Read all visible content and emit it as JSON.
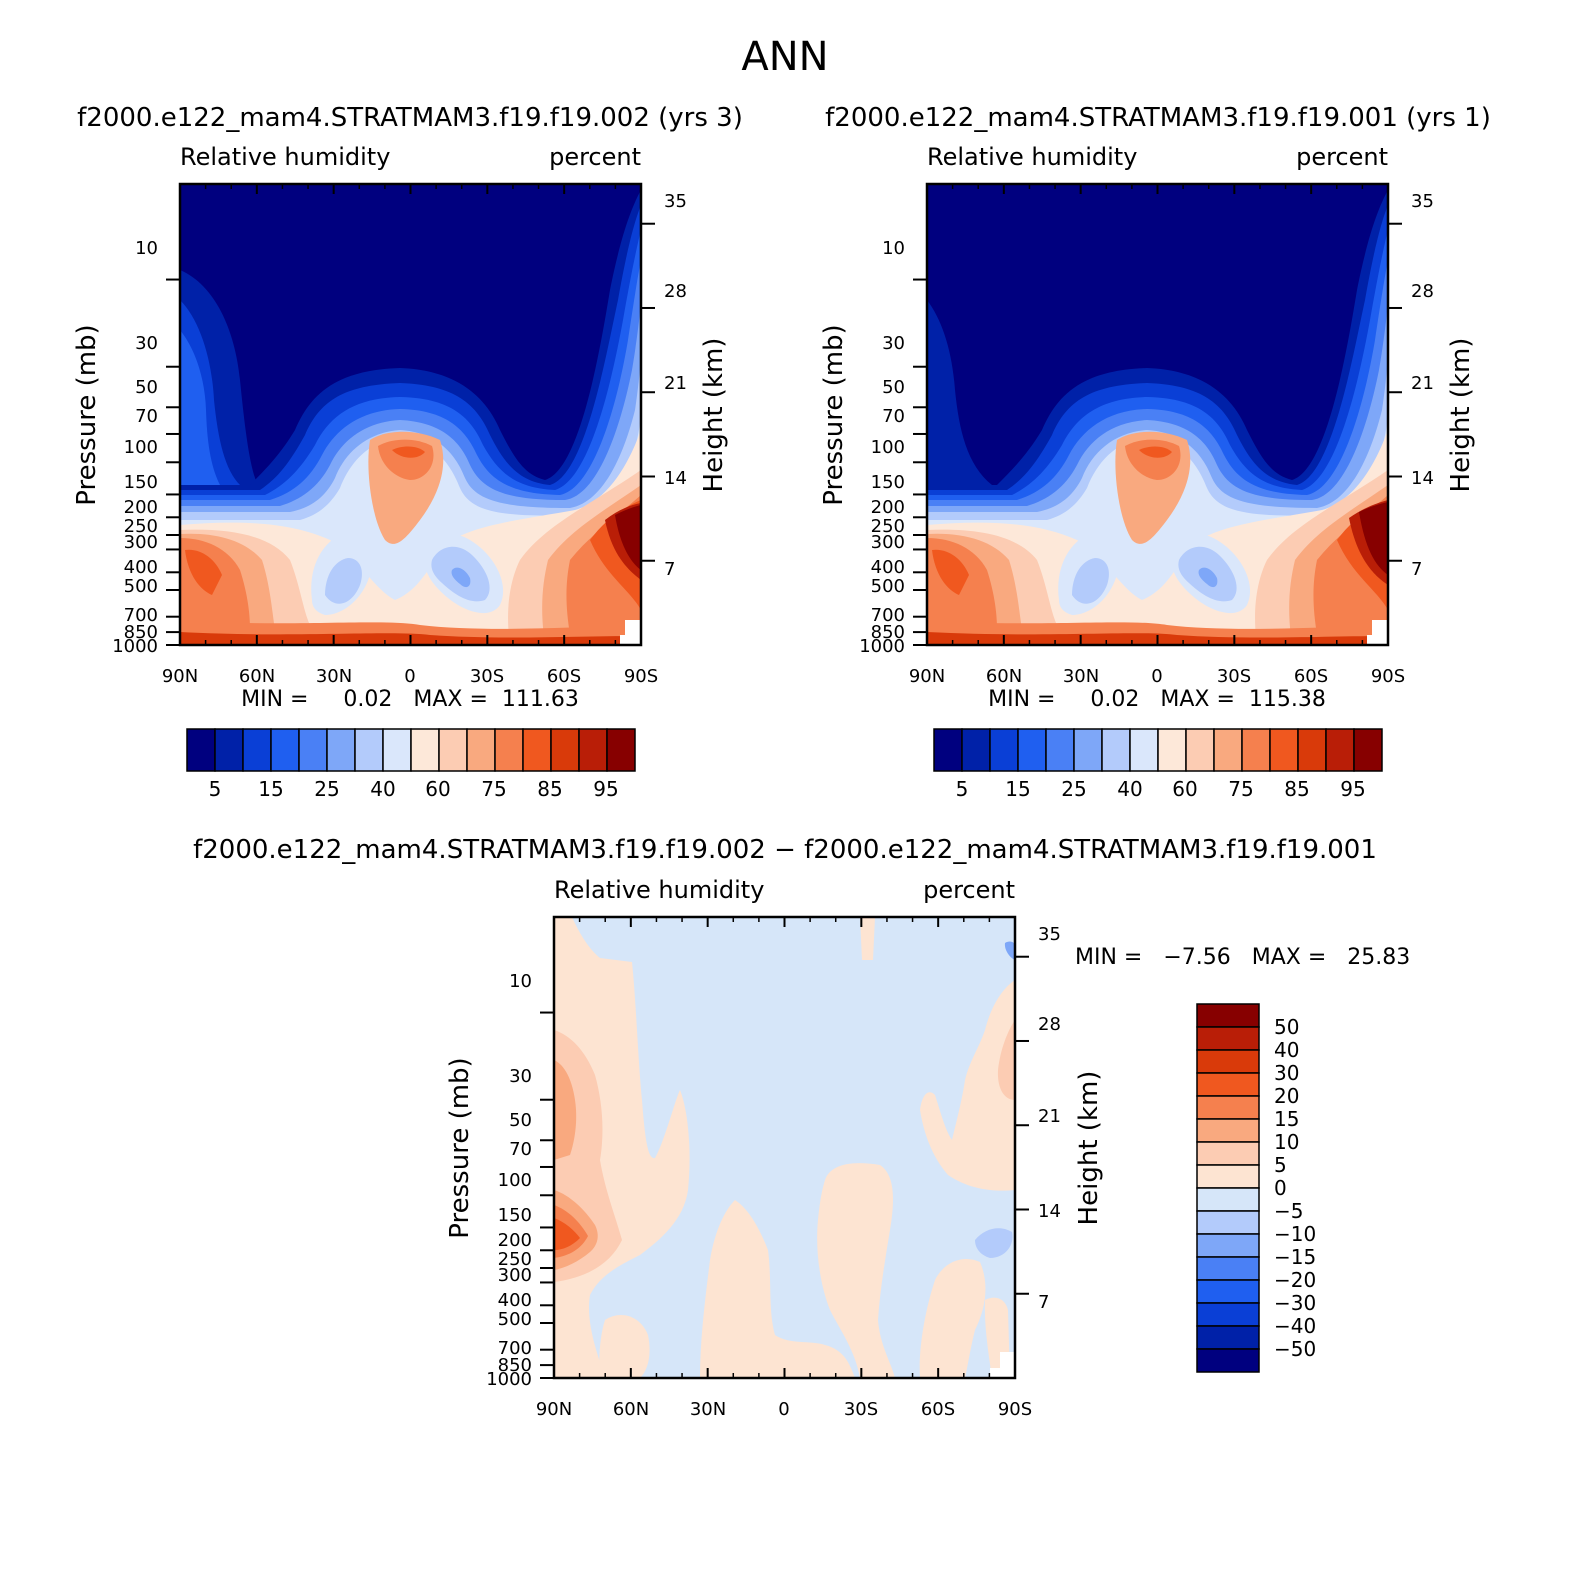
{
  "figure": {
    "title": "ANN",
    "top_left_header": "f2000.e122_mam4.STRATMAM3.f19.f19.002  (yrs  3)",
    "top_right_header": "f2000.e122_mam4.STRATMAM3.f19.f19.001  (yrs  1)",
    "bottom_header": "f2000.e122_mam4.STRATMAM3.f19.f19.002  −  f2000.e122_mam4.STRATMAM3.f19.f19.001"
  },
  "colors": {
    "abs_palette": [
      "#00007f",
      "#0021a8",
      "#0a3fd6",
      "#1f5ff0",
      "#4a80f5",
      "#7ea7f8",
      "#b3cbfb",
      "#dae7fb",
      "#fde8d9",
      "#fcccb3",
      "#f9a97f",
      "#f5804e",
      "#f0581f",
      "#d93a0a",
      "#b91e07",
      "#870000"
    ],
    "diff_palette": [
      "#00007f",
      "#0021a8",
      "#0a3fd6",
      "#1f5ff0",
      "#4a80f5",
      "#7ea7f8",
      "#b3cbfb",
      "#d6e6f9",
      "#fde4d2",
      "#fcccb3",
      "#f9a97f",
      "#f5804e",
      "#f0581f",
      "#d93a0a",
      "#b91e07",
      "#870000"
    ]
  },
  "chart_data": [
    {
      "type": "heatmap",
      "panel": "top-left",
      "subtitle_left": "Relative humidity",
      "subtitle_right": "percent",
      "ylabel": "Pressure (mb)",
      "ylabel_right": "Height (km)",
      "x_ticks": [
        "90N",
        "60N",
        "30N",
        "0",
        "30S",
        "60S",
        "90S"
      ],
      "y_ticks": [
        "10",
        "30",
        "50",
        "70",
        "100",
        "150",
        "200",
        "250",
        "300",
        "400",
        "500",
        "700",
        "850",
        "1000"
      ],
      "y_right_ticks": [
        "35",
        "28",
        "21",
        "14",
        "7"
      ],
      "xlim": [
        90,
        -90
      ],
      "ylim": [
        1000,
        3
      ],
      "ylog": true,
      "stats": "MIN =     0.02   MAX =  111.63",
      "min": 0.02,
      "max": 111.63,
      "colorbar_levels": [
        "5",
        "15",
        "25",
        "40",
        "60",
        "75",
        "85",
        "95"
      ],
      "colorbar_orientation": "horizontal"
    },
    {
      "type": "heatmap",
      "panel": "top-right",
      "subtitle_left": "Relative humidity",
      "subtitle_right": "percent",
      "ylabel": "Pressure (mb)",
      "ylabel_right": "Height (km)",
      "x_ticks": [
        "90N",
        "60N",
        "30N",
        "0",
        "30S",
        "60S",
        "90S"
      ],
      "y_ticks": [
        "10",
        "30",
        "50",
        "70",
        "100",
        "150",
        "200",
        "250",
        "300",
        "400",
        "500",
        "700",
        "850",
        "1000"
      ],
      "y_right_ticks": [
        "35",
        "28",
        "21",
        "14",
        "7"
      ],
      "xlim": [
        90,
        -90
      ],
      "ylim": [
        1000,
        3
      ],
      "ylog": true,
      "stats": "MIN =     0.02   MAX =  115.38",
      "min": 0.02,
      "max": 115.38,
      "colorbar_levels": [
        "5",
        "15",
        "25",
        "40",
        "60",
        "75",
        "85",
        "95"
      ],
      "colorbar_orientation": "horizontal"
    },
    {
      "type": "heatmap",
      "panel": "bottom",
      "subtitle_left": "Relative humidity",
      "subtitle_right": "percent",
      "ylabel": "Pressure (mb)",
      "ylabel_right": "Height (km)",
      "x_ticks": [
        "90N",
        "60N",
        "30N",
        "0",
        "30S",
        "60S",
        "90S"
      ],
      "y_ticks": [
        "10",
        "30",
        "50",
        "70",
        "100",
        "150",
        "200",
        "250",
        "300",
        "400",
        "500",
        "700",
        "850",
        "1000"
      ],
      "y_right_ticks": [
        "35",
        "28",
        "21",
        "14",
        "7"
      ],
      "xlim": [
        90,
        -90
      ],
      "ylim": [
        1000,
        3
      ],
      "ylog": true,
      "stats": "MIN =   −7.56   MAX =   25.83",
      "min": -7.56,
      "max": 25.83,
      "colorbar_levels": [
        "50",
        "40",
        "30",
        "20",
        "15",
        "10",
        "5",
        "0",
        "−5",
        "−10",
        "−15",
        "−20",
        "−30",
        "−40",
        "−50"
      ],
      "colorbar_orientation": "vertical"
    }
  ]
}
